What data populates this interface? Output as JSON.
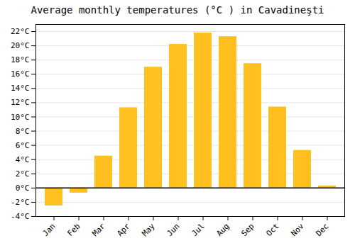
{
  "chart_data": {
    "type": "bar",
    "title": "Average monthly temperatures (°C ) in Cavadineşti",
    "categories": [
      "Jan",
      "Feb",
      "Mar",
      "Apr",
      "May",
      "Jun",
      "Jul",
      "Aug",
      "Sep",
      "Oct",
      "Nov",
      "Dec"
    ],
    "values": [
      -2.5,
      -0.7,
      4.5,
      11.3,
      17.0,
      20.2,
      21.8,
      21.3,
      17.5,
      11.4,
      5.3,
      0.3
    ],
    "color": "#FFC020",
    "ylim": [
      -4,
      23
    ],
    "yticks": [
      {
        "value": -4,
        "label": "-4°C"
      },
      {
        "value": -2,
        "label": "-2°C"
      },
      {
        "value": 0,
        "label": "0°C"
      },
      {
        "value": 2,
        "label": "2°C"
      },
      {
        "value": 4,
        "label": "4°C"
      },
      {
        "value": 6,
        "label": "6°C"
      },
      {
        "value": 8,
        "label": "8°C"
      },
      {
        "value": 10,
        "label": "10°C"
      },
      {
        "value": 12,
        "label": "12°C"
      },
      {
        "value": 14,
        "label": "14°C"
      },
      {
        "value": 16,
        "label": "16°C"
      },
      {
        "value": 18,
        "label": "18°C"
      },
      {
        "value": 20,
        "label": "20°C"
      },
      {
        "value": 22,
        "label": "22°C"
      }
    ],
    "grid": true
  }
}
